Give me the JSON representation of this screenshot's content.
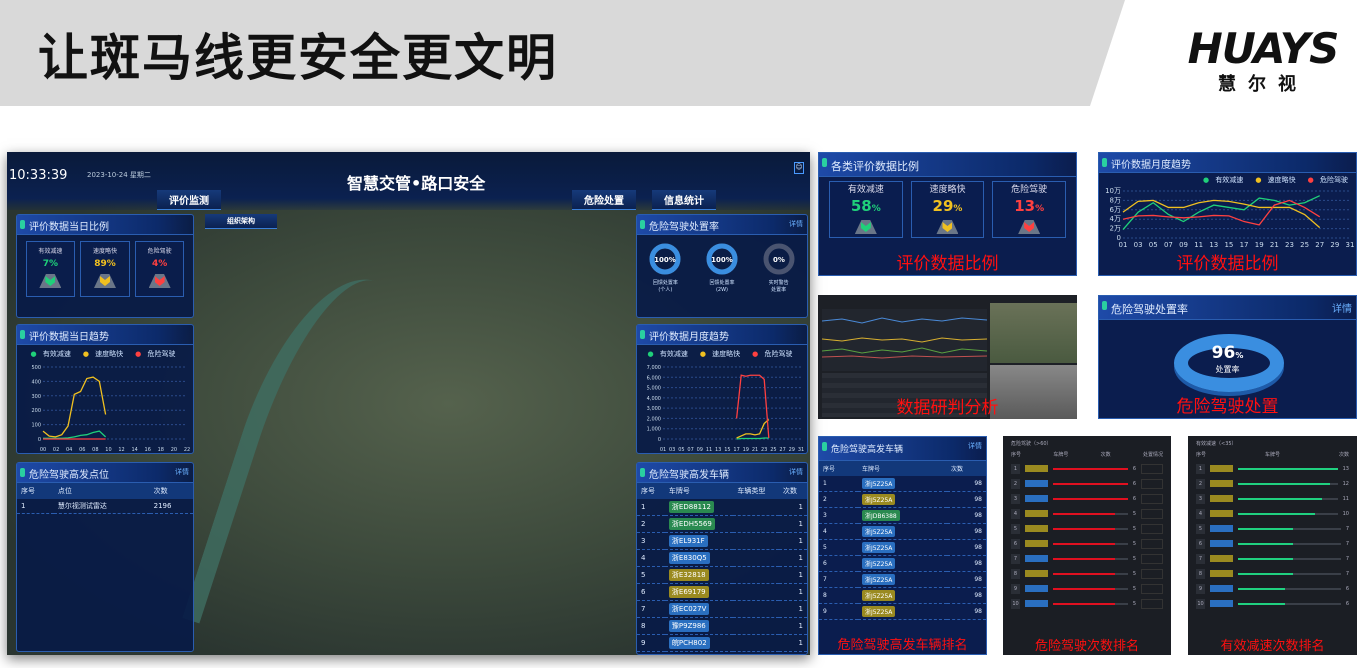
{
  "slide": {
    "title": "让斑马线更安全更文明",
    "logo_en": "HUAYS",
    "logo_cn": "慧尔视"
  },
  "colors": {
    "green": "#1fd07a",
    "yellow": "#f0c020",
    "red": "#ff4040",
    "plate_blue": "#2a6fc0",
    "plate_yellow": "#9a8a20",
    "plate_green": "#2a8a50",
    "caption": "#ff1010"
  },
  "dashboard": {
    "time": "10:33:39",
    "date": "2023-10-24",
    "weekday": "星期二",
    "title": "智慧交管•路口安全",
    "nav": [
      "评价监测",
      "危险处置",
      "信息统计"
    ],
    "org_dropdown": "组织架构",
    "daily_ratio": {
      "title": "评价数据当日比例",
      "items": [
        {
          "label": "有效减速",
          "value": "7%",
          "color": "#1fd07a"
        },
        {
          "label": "速度略快",
          "value": "89%",
          "color": "#f0c020"
        },
        {
          "label": "危险驾驶",
          "value": "4%",
          "color": "#ff4040"
        }
      ]
    },
    "legend": [
      "有效减速",
      "速度略快",
      "危险驾驶"
    ],
    "daily_trend": {
      "title": "评价数据当日趋势"
    },
    "hotspots": {
      "title": "危险驾驶高发点位",
      "detail": "详情",
      "headers": [
        "序号",
        "点位",
        "次数"
      ],
      "rows": [
        [
          "1",
          "慧尔视测试雷达",
          "2196"
        ]
      ]
    },
    "disposal": {
      "title": "危险驾驶处置率",
      "detail": "详情",
      "rings": [
        {
          "value": 100,
          "label": "回馈处置率",
          "sub": "(个人)"
        },
        {
          "value": 100,
          "label": "回馈处置率",
          "sub": "(2W)"
        },
        {
          "value": 0,
          "label": "实时警告",
          "sub": "处置率"
        }
      ]
    },
    "monthly_trend": {
      "title": "评价数据月度趋势"
    },
    "vehicles": {
      "title": "危险驾驶高发车辆",
      "detail": "详情",
      "headers": [
        "序号",
        "车牌号",
        "车辆类型",
        "次数"
      ],
      "rows": [
        [
          "1",
          "浙ED88112",
          "green",
          "1"
        ],
        [
          "2",
          "浙EDH5569",
          "green",
          "1"
        ],
        [
          "3",
          "浙EL931F",
          "blue",
          "1"
        ],
        [
          "4",
          "浙E830Q5",
          "blue",
          "1"
        ],
        [
          "5",
          "浙E32818",
          "yellow",
          "1"
        ],
        [
          "6",
          "浙E69179",
          "yellow",
          "1"
        ],
        [
          "7",
          "浙EC027V",
          "blue",
          "1"
        ],
        [
          "8",
          "豫P9Z986",
          "blue",
          "1"
        ],
        [
          "9",
          "皖PCH802",
          "blue",
          "1"
        ]
      ]
    }
  },
  "thumbs": {
    "ratio": {
      "title": "各类评价数据比例",
      "items": [
        {
          "label": "有效减速",
          "value": "58",
          "color": "#1fd07a"
        },
        {
          "label": "速度略快",
          "value": "29",
          "color": "#f0c020"
        },
        {
          "label": "危险驾驶",
          "value": "13",
          "color": "#ff4040"
        }
      ],
      "unit": "%",
      "caption": "评价数据比例"
    },
    "monthly": {
      "title": "评价数据月度趋势",
      "caption": "评价数据比例"
    },
    "analysis": {
      "caption": "数据研判分析"
    },
    "disposal": {
      "title": "危险驾驶处置率",
      "detail": "详情",
      "value": "96",
      "unit": "%",
      "label": "处置率",
      "caption": "危险驾驶处置"
    },
    "vehicles": {
      "title": "危险驾驶高发车辆",
      "detail": "详情",
      "headers": [
        "序号",
        "车牌号",
        "次数"
      ],
      "rows": [
        [
          "1",
          "浙J5Z25A",
          "blue",
          "98"
        ],
        [
          "2",
          "浙J5Z25A",
          "yellow",
          "98"
        ],
        [
          "3",
          "浙JDB6388",
          "green",
          "98"
        ],
        [
          "4",
          "浙J5Z25A",
          "blue",
          "98"
        ],
        [
          "5",
          "浙J5Z25A",
          "blue",
          "98"
        ],
        [
          "6",
          "浙J5Z25A",
          "blue",
          "98"
        ],
        [
          "7",
          "浙J5Z25A",
          "blue",
          "98"
        ],
        [
          "8",
          "浙J5Z25A",
          "yellow",
          "98"
        ],
        [
          "9",
          "浙J5Z25A",
          "yellow",
          "98"
        ]
      ],
      "caption": "危险驾驶高发车辆排名"
    },
    "danger_rank": {
      "title": "危险驾驶（>60）",
      "headers": [
        "序号",
        "车牌号",
        "次数",
        "处置情况"
      ],
      "counts": [
        6,
        6,
        6,
        5,
        5,
        5,
        5,
        5,
        5,
        5
      ],
      "max": 6,
      "plates": [
        "yellow",
        "blue",
        "blue",
        "yellow",
        "yellow",
        "yellow",
        "blue",
        "yellow",
        "blue",
        "blue"
      ],
      "caption": "危险驾驶次数排名"
    },
    "decel_rank": {
      "title": "有效减速（<35）",
      "headers": [
        "序号",
        "车牌号",
        "次数"
      ],
      "counts": [
        13,
        12,
        11,
        10,
        7,
        7,
        7,
        7,
        6,
        6
      ],
      "max": 13,
      "plates": [
        "yellow",
        "yellow",
        "yellow",
        "yellow",
        "blue",
        "blue",
        "yellow",
        "yellow",
        "blue",
        "blue"
      ],
      "caption": "有效减速次数排名"
    }
  },
  "chart_data": [
    {
      "type": "line",
      "x": [
        "00",
        "01",
        "02",
        "03",
        "04",
        "05",
        "06",
        "07",
        "08",
        "09",
        "10"
      ],
      "xticks": [
        "00",
        "02",
        "04",
        "06",
        "08",
        "10",
        "12",
        "14",
        "16",
        "18",
        "20",
        "22"
      ],
      "ylim": [
        0,
        500
      ],
      "yticks": [
        0,
        100,
        200,
        300,
        400,
        500
      ],
      "series": [
        {
          "name": "有效减速",
          "color": "#1fd07a",
          "values": [
            5,
            5,
            5,
            5,
            8,
            15,
            25,
            30,
            45,
            55,
            15
          ]
        },
        {
          "name": "速度略快",
          "color": "#f0c020",
          "values": [
            55,
            20,
            15,
            30,
            90,
            310,
            330,
            420,
            430,
            400,
            170
          ]
        },
        {
          "name": "危险驾驶",
          "color": "#ff4040",
          "values": [
            0,
            0,
            0,
            0,
            0,
            0,
            0,
            0,
            0,
            0,
            0
          ]
        }
      ],
      "xmax": 23
    },
    {
      "type": "line",
      "x": [
        17,
        18,
        19,
        20,
        21,
        22,
        23,
        24
      ],
      "xticks": [
        "01",
        "03",
        "05",
        "07",
        "09",
        "11",
        "13",
        "15",
        "17",
        "19",
        "21",
        "23",
        "25",
        "27",
        "29",
        "31"
      ],
      "ylim": [
        0,
        7000
      ],
      "yticks": [
        "0",
        "1,000",
        "2,000",
        "3,000",
        "4,000",
        "5,000",
        "6,000",
        "7,000"
      ],
      "xmin": 1,
      "xmax": 31,
      "series": [
        {
          "name": "有效减速",
          "color": "#1fd07a",
          "values": [
            0,
            50,
            50,
            50,
            50,
            50,
            100,
            100
          ]
        },
        {
          "name": "速度略快",
          "color": "#f0c020",
          "values": [
            100,
            300,
            500,
            500,
            400,
            500,
            1500,
            1900
          ]
        },
        {
          "name": "危险驾驶",
          "color": "#ff4040",
          "values": [
            2000,
            6200,
            6100,
            6200,
            6200,
            6200,
            5800,
            100
          ]
        }
      ]
    },
    {
      "type": "line",
      "x": [
        1,
        3,
        5,
        7,
        9,
        11,
        13,
        15,
        17,
        19,
        21,
        23,
        25,
        27
      ],
      "xticks": [
        "01",
        "03",
        "05",
        "07",
        "09",
        "11",
        "13",
        "15",
        "17",
        "19",
        "21",
        "23",
        "25",
        "27",
        "29",
        "31"
      ],
      "ylim": [
        0,
        10
      ],
      "yticks": [
        "0",
        "2万",
        "4万",
        "6万",
        "8万",
        "10万"
      ],
      "xmin": 1,
      "xmax": 31,
      "series": [
        {
          "name": "有效减速",
          "color": "#1fd07a",
          "values": [
            1.8,
            5.5,
            7.5,
            5,
            3.5,
            5.5,
            7,
            6.5,
            6,
            8.5,
            8,
            7,
            7.5,
            9
          ]
        },
        {
          "name": "速度略快",
          "color": "#f0c020",
          "values": [
            5.5,
            7.8,
            8,
            6.5,
            6.5,
            7.5,
            8,
            7.8,
            7.2,
            6.5,
            6.5,
            6.5,
            5,
            2.2
          ]
        },
        {
          "name": "危险驾驶",
          "color": "#ff4040",
          "values": [
            4,
            4.7,
            4.8,
            4.5,
            4.3,
            4.5,
            4.8,
            4.7,
            3.5,
            2.8,
            7,
            8,
            6.5,
            4.5
          ]
        }
      ]
    }
  ]
}
